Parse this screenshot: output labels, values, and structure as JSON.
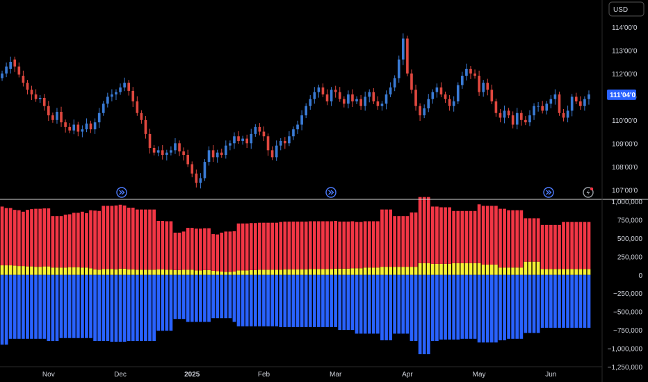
{
  "currency_label": "USD",
  "colors": {
    "background": "#000000",
    "up_candle": "#3a7bd5",
    "down_candle": "#e0483f",
    "bar_red": "#f23645",
    "bar_yellow": "#f7f035",
    "bar_blue": "#2962ff",
    "price_tag_bg": "#2962ff",
    "separator": "#d8d8d8",
    "marker_icon": "#4d7cff",
    "flash_icon_dot": "#f23645"
  },
  "icons": [
    "fast-forward-circle-icon",
    "fast-forward-circle-icon",
    "fast-forward-circle-icon",
    "flash-circle-icon"
  ],
  "chart_data": [
    {
      "type": "candlestick",
      "title": "",
      "ylim": [
        106.8,
        114.5
      ],
      "y_ticks": [
        107,
        108,
        109,
        110,
        111,
        112,
        113,
        114
      ],
      "y_tick_labels": [
        "107'00'0",
        "108'00'0",
        "109'00'0",
        "110'00'0",
        "111'00'0",
        "112'00'0",
        "113'00'0",
        "114'00'0"
      ],
      "last_price_label": "111'04'0",
      "last_price": 111.1,
      "x_tick_labels": [
        "Nov",
        "Dec",
        "2025",
        "Feb",
        "Mar",
        "Apr",
        "May",
        "Jun"
      ],
      "x_tick_index": [
        11,
        28,
        45,
        62,
        79,
        96,
        113,
        130
      ],
      "grid": false,
      "bars": 140,
      "close": [
        112.0,
        112.3,
        112.5,
        112.3,
        111.95,
        111.6,
        111.3,
        111.1,
        110.9,
        110.95,
        110.6,
        110.2,
        110.0,
        110.35,
        109.9,
        109.7,
        109.55,
        109.8,
        109.5,
        109.6,
        109.85,
        109.6,
        109.9,
        110.3,
        110.7,
        111.0,
        111.1,
        111.2,
        111.4,
        111.6,
        111.25,
        110.8,
        110.3,
        110.0,
        109.4,
        108.8,
        108.6,
        108.7,
        108.5,
        108.6,
        108.7,
        109.0,
        108.65,
        108.5,
        108.1,
        107.7,
        107.3,
        107.5,
        108.2,
        108.7,
        108.4,
        108.6,
        108.5,
        108.9,
        109.0,
        109.3,
        109.1,
        109.2,
        109.0,
        109.4,
        109.7,
        109.5,
        109.3,
        108.7,
        108.4,
        108.9,
        109.1,
        109.0,
        109.3,
        109.6,
        109.8,
        110.2,
        110.6,
        110.9,
        111.2,
        111.4,
        111.1,
        110.8,
        111.3,
        111.2,
        110.9,
        110.7,
        111.1,
        110.8,
        110.9,
        110.6,
        111.0,
        111.2,
        110.8,
        110.6,
        110.7,
        111.1,
        111.4,
        111.8,
        112.6,
        113.5,
        112.0,
        111.3,
        110.6,
        110.2,
        110.5,
        110.9,
        111.2,
        111.4,
        111.1,
        110.9,
        110.6,
        110.8,
        111.5,
        111.9,
        112.2,
        112.0,
        111.9,
        111.2,
        111.6,
        111.3,
        110.8,
        110.3,
        110.1,
        110.4,
        110.2,
        109.8,
        110.3,
        110.0,
        109.9,
        110.2,
        110.6,
        110.6,
        110.4,
        110.7,
        110.9,
        111.1,
        110.3,
        110.1,
        110.4,
        111.0,
        110.8,
        110.6,
        110.9,
        111.1
      ],
      "open": [
        111.8,
        112.0,
        112.2,
        112.6,
        112.3,
        111.9,
        111.6,
        111.3,
        111.1,
        110.9,
        110.95,
        110.6,
        110.2,
        110.0,
        110.35,
        109.9,
        109.7,
        109.55,
        109.8,
        109.5,
        109.6,
        109.85,
        109.6,
        109.9,
        110.3,
        110.7,
        111.0,
        111.1,
        111.2,
        111.4,
        111.6,
        111.25,
        110.8,
        110.3,
        110.0,
        109.4,
        108.8,
        108.6,
        108.7,
        108.5,
        108.6,
        108.7,
        109.0,
        108.65,
        108.5,
        108.1,
        107.7,
        107.3,
        107.5,
        108.2,
        108.7,
        108.4,
        108.6,
        108.5,
        108.9,
        109.0,
        109.3,
        109.1,
        109.2,
        109.0,
        109.4,
        109.7,
        109.5,
        109.3,
        108.7,
        108.4,
        108.9,
        109.1,
        109.0,
        109.3,
        109.6,
        109.8,
        110.2,
        110.6,
        110.9,
        111.2,
        111.4,
        111.1,
        110.8,
        111.3,
        111.2,
        110.9,
        110.7,
        111.1,
        110.8,
        110.9,
        110.6,
        111.0,
        111.2,
        110.8,
        110.6,
        110.7,
        111.1,
        111.4,
        111.8,
        112.6,
        113.5,
        112.0,
        111.3,
        110.6,
        110.2,
        110.5,
        110.9,
        111.2,
        111.4,
        111.1,
        110.9,
        110.6,
        110.8,
        111.5,
        111.9,
        112.2,
        112.0,
        111.9,
        111.2,
        111.6,
        111.3,
        110.8,
        110.3,
        110.1,
        110.4,
        110.2,
        109.8,
        110.3,
        110.0,
        109.9,
        110.2,
        110.6,
        110.6,
        110.4,
        110.7,
        110.9,
        111.1,
        110.3,
        110.1,
        110.4,
        111.0,
        110.8,
        110.6,
        110.9
      ]
    },
    {
      "type": "bar",
      "title": "",
      "ylim": [
        -1250000,
        1000000
      ],
      "y_ticks": [
        1000000,
        750000,
        500000,
        250000,
        0,
        -250000,
        -500000,
        -750000,
        -1000000,
        -1250000
      ],
      "y_tick_labels": [
        "1,000,000",
        "750,000",
        "500,000",
        "250,000",
        "0",
        "−250,000",
        "−500,000",
        "−750,000",
        "−1,000,000",
        "−1,250,000"
      ],
      "grid": false,
      "series": [
        {
          "color_key": "bar_red",
          "values": [
            800000,
            780000,
            780000,
            760000,
            760000,
            740000,
            770000,
            780000,
            790000,
            790000,
            790000,
            790000,
            700000,
            700000,
            700000,
            720000,
            720000,
            740000,
            740000,
            760000,
            740000,
            790000,
            800000,
            800000,
            860000,
            860000,
            860000,
            870000,
            870000,
            860000,
            840000,
            840000,
            820000,
            820000,
            820000,
            820000,
            820000,
            660000,
            660000,
            660000,
            660000,
            510000,
            510000,
            520000,
            570000,
            570000,
            570000,
            570000,
            570000,
            570000,
            500000,
            500000,
            530000,
            550000,
            550000,
            550000,
            640000,
            640000,
            640000,
            640000,
            640000,
            640000,
            640000,
            640000,
            640000,
            640000,
            650000,
            650000,
            650000,
            650000,
            650000,
            650000,
            650000,
            650000,
            650000,
            650000,
            650000,
            650000,
            650000,
            650000,
            640000,
            640000,
            640000,
            640000,
            630000,
            630000,
            630000,
            630000,
            630000,
            630000,
            780000,
            780000,
            780000,
            690000,
            690000,
            690000,
            690000,
            740000,
            740000,
            900000,
            900000,
            900000,
            780000,
            780000,
            770000,
            770000,
            770000,
            710000,
            710000,
            710000,
            710000,
            710000,
            710000,
            800000,
            800000,
            800000,
            800000,
            800000,
            800000,
            800000,
            780000,
            780000,
            780000,
            780000,
            590000,
            590000,
            590000,
            590000,
            600000,
            600000,
            600000,
            600000,
            600000,
            640000,
            640000,
            640000,
            640000,
            640000,
            640000,
            640000
          ]
        },
        {
          "color_key": "bar_yellow",
          "values": [
            130000,
            130000,
            130000,
            125000,
            120000,
            120000,
            115000,
            115000,
            110000,
            110000,
            115000,
            115000,
            100000,
            100000,
            100000,
            100000,
            105000,
            105000,
            105000,
            100000,
            100000,
            90000,
            75000,
            70000,
            80000,
            80000,
            80000,
            75000,
            85000,
            85000,
            75000,
            75000,
            70000,
            70000,
            70000,
            70000,
            70000,
            75000,
            75000,
            70000,
            70000,
            65000,
            65000,
            70000,
            70000,
            70000,
            60000,
            60000,
            65000,
            65000,
            55000,
            50000,
            45000,
            40000,
            40000,
            45000,
            60000,
            60000,
            60000,
            65000,
            65000,
            70000,
            70000,
            70000,
            70000,
            70000,
            70000,
            75000,
            75000,
            75000,
            75000,
            75000,
            75000,
            80000,
            80000,
            80000,
            80000,
            80000,
            80000,
            85000,
            85000,
            85000,
            85000,
            90000,
            90000,
            90000,
            100000,
            100000,
            100000,
            100000,
            110000,
            110000,
            110000,
            110000,
            110000,
            110000,
            110000,
            110000,
            110000,
            160000,
            160000,
            160000,
            150000,
            150000,
            150000,
            150000,
            150000,
            160000,
            160000,
            160000,
            160000,
            160000,
            160000,
            160000,
            140000,
            140000,
            140000,
            140000,
            100000,
            100000,
            100000,
            100000,
            100000,
            100000,
            180000,
            180000,
            180000,
            180000,
            80000,
            80000,
            80000,
            80000,
            80000,
            80000,
            80000,
            80000,
            80000,
            80000,
            80000,
            80000
          ]
        },
        {
          "color_key": "bar_blue",
          "values": [
            -950000,
            -950000,
            -870000,
            -870000,
            -870000,
            -870000,
            -870000,
            -870000,
            -870000,
            -870000,
            -870000,
            -900000,
            -900000,
            -900000,
            -860000,
            -860000,
            -860000,
            -860000,
            -860000,
            -860000,
            -860000,
            -860000,
            -900000,
            -900000,
            -900000,
            -900000,
            -910000,
            -910000,
            -910000,
            -910000,
            -900000,
            -900000,
            -900000,
            -900000,
            -900000,
            -900000,
            -900000,
            -760000,
            -760000,
            -760000,
            -760000,
            -600000,
            -600000,
            -600000,
            -640000,
            -640000,
            -640000,
            -640000,
            -640000,
            -640000,
            -590000,
            -590000,
            -590000,
            -590000,
            -590000,
            -640000,
            -700000,
            -700000,
            -700000,
            -700000,
            -700000,
            -700000,
            -700000,
            -700000,
            -700000,
            -700000,
            -710000,
            -710000,
            -710000,
            -710000,
            -710000,
            -710000,
            -710000,
            -710000,
            -710000,
            -710000,
            -710000,
            -710000,
            -710000,
            -710000,
            -750000,
            -750000,
            -750000,
            -750000,
            -800000,
            -800000,
            -800000,
            -800000,
            -800000,
            -800000,
            -890000,
            -890000,
            -890000,
            -800000,
            -800000,
            -800000,
            -800000,
            -900000,
            -900000,
            -1080000,
            -1080000,
            -1080000,
            -900000,
            -900000,
            -880000,
            -880000,
            -880000,
            -880000,
            -880000,
            -870000,
            -870000,
            -870000,
            -870000,
            -920000,
            -920000,
            -920000,
            -920000,
            -920000,
            -890000,
            -890000,
            -870000,
            -870000,
            -870000,
            -870000,
            -790000,
            -790000,
            -790000,
            -790000,
            -720000,
            -720000,
            -720000,
            -720000,
            -720000,
            -720000,
            -720000,
            -720000,
            -720000,
            -720000,
            -720000,
            -720000
          ]
        }
      ]
    }
  ]
}
